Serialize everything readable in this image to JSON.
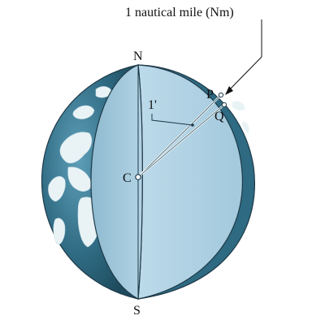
{
  "figure": {
    "callout_label": "1 nautical mile (Nm)",
    "points": {
      "north": "N",
      "south": "S",
      "center": "C",
      "p": "P",
      "q": "Q"
    },
    "angle_label": "1'"
  },
  "colors": {
    "ocean_dark": "#24566b",
    "ocean_mid": "#3f7f98",
    "land": "#e9f3f6",
    "cut_face": "#a9cee0",
    "cut_face_light": "#bcdaea",
    "outline": "#1f3a48"
  }
}
